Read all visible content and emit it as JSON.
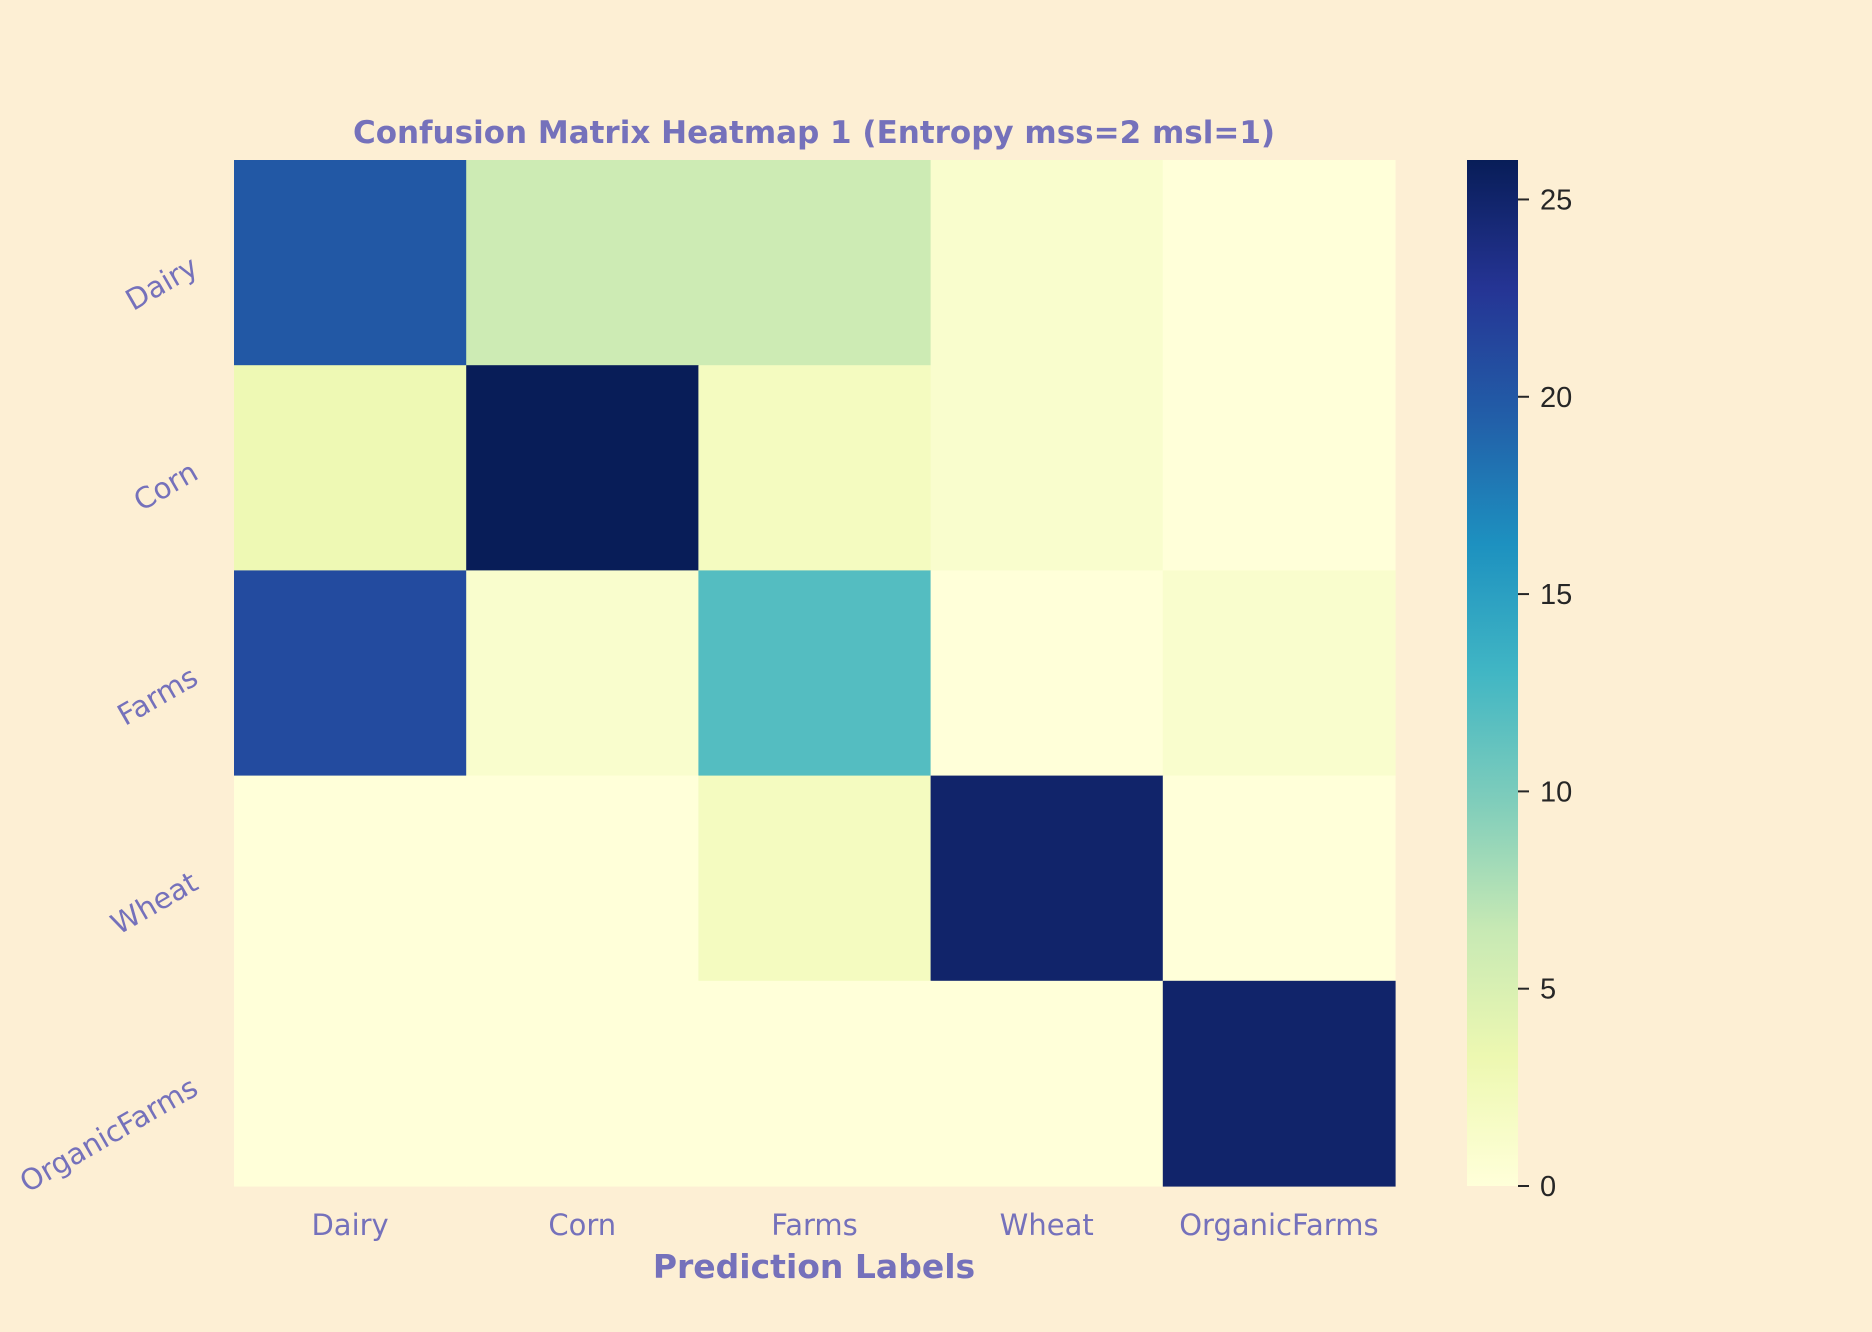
{
  "chart_data": {
    "type": "heatmap",
    "title": "Confusion Matrix Heatmap 1 (Entropy mss=2 msl=1)",
    "xlabel": "Prediction Labels",
    "ylabel": "",
    "x_categories": [
      "Dairy",
      "Corn",
      "Farms",
      "Wheat",
      "OrganicFarms"
    ],
    "y_categories": [
      "Dairy",
      "Corn",
      "Farms",
      "Wheat",
      "OrganicFarms"
    ],
    "values": [
      [
        20,
        6,
        6,
        1,
        0
      ],
      [
        3,
        26,
        2,
        1,
        0
      ],
      [
        21,
        1,
        12,
        0,
        1
      ],
      [
        0,
        0,
        2,
        25,
        0
      ],
      [
        0,
        0,
        0,
        0,
        25
      ]
    ],
    "colormap": "YlGnBu",
    "color_range": [
      0,
      26
    ],
    "colorbar_ticks": [
      0,
      5,
      10,
      15,
      20,
      25
    ],
    "grid": false,
    "colors": {
      "background": "#fdefd4",
      "label_color": "#7571bb",
      "colorbar_tick_color": "#262626"
    }
  }
}
